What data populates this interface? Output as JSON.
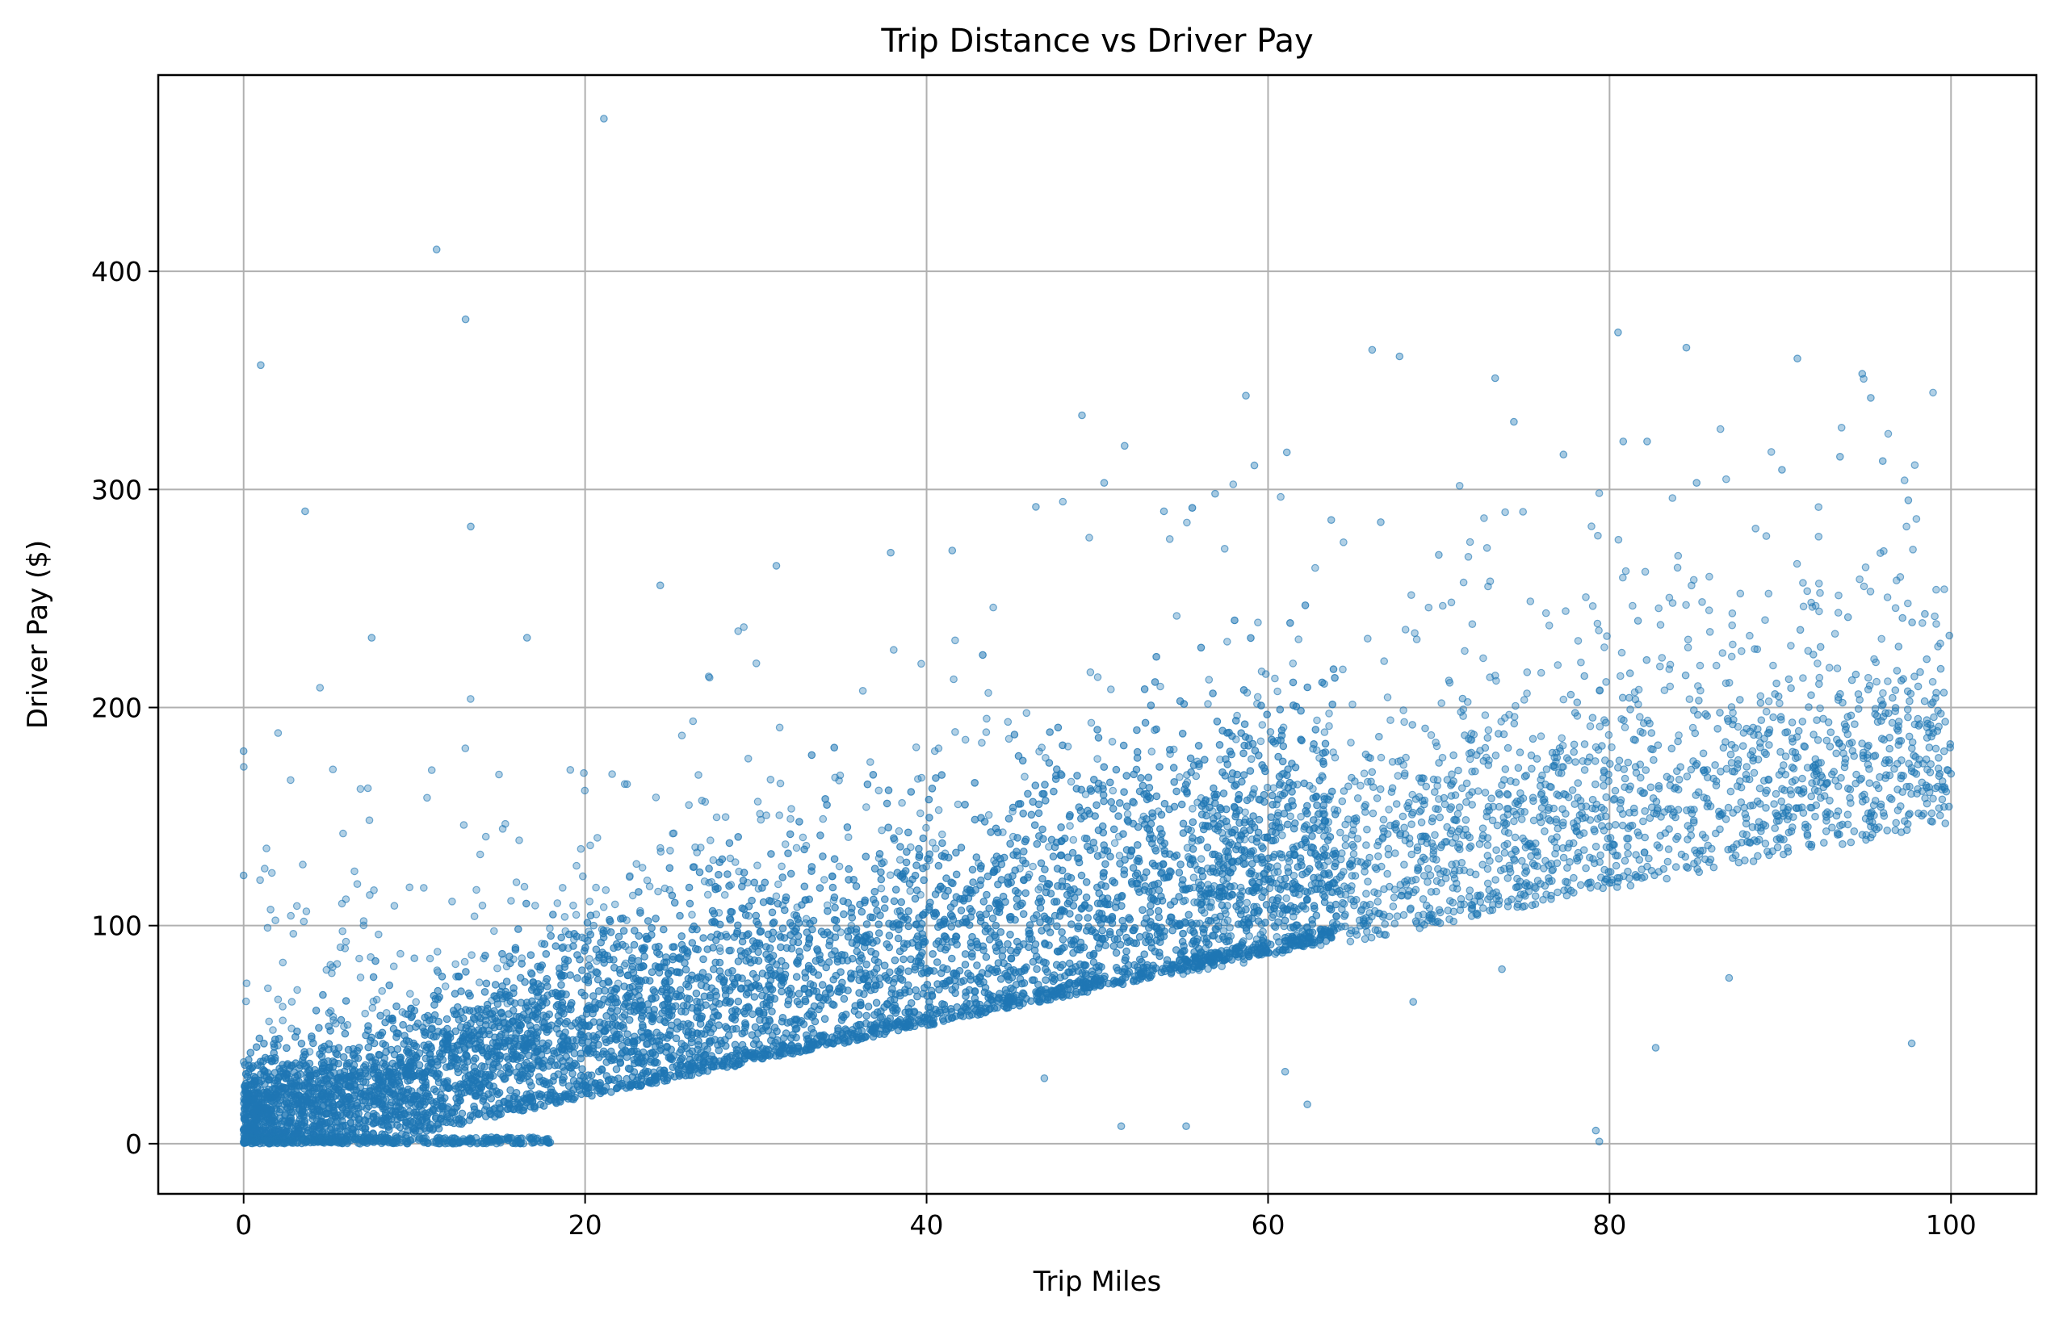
{
  "chart_data": {
    "type": "scatter",
    "title": "Trip Distance vs Driver Pay",
    "xlabel": "Trip Miles",
    "ylabel": "Driver Pay ($)",
    "xlim": [
      -5,
      105
    ],
    "ylim": [
      -23,
      490
    ],
    "xticks": [
      0,
      20,
      40,
      60,
      80,
      100
    ],
    "xtick_labels": [
      "0",
      "20",
      "40",
      "60",
      "80",
      "100"
    ],
    "yticks": [
      0,
      100,
      200,
      300,
      400
    ],
    "ytick_labels": [
      "0",
      "100",
      "200",
      "300",
      "400"
    ],
    "grid": true,
    "legend": "none",
    "colors": {
      "points": "#1f77b4",
      "grid": "#b0b0b0",
      "axes": "#000000"
    },
    "series": [
      {
        "points_note": "dense band roughly along y ≈ 10 + 1.7x, spread widens with x",
        "x": [
          0.0,
          0.0,
          1.0,
          3.6,
          7.5,
          11.3,
          13.0,
          13.3,
          16.6,
          21.1,
          24.4,
          31.2,
          37.9,
          41.5,
          46.4,
          49.1,
          50.4,
          51.6,
          53.9,
          56.9,
          58.7,
          59.2,
          61.1,
          63.7,
          66.1,
          66.6,
          67.7,
          70.0,
          73.3,
          74.4,
          77.3,
          80.5,
          80.8,
          82.2,
          84.5,
          85.1,
          90.1,
          91.0,
          93.5,
          94.8,
          95.3,
          96.0,
          97.5,
          99.9,
          87.0,
          79.2,
          79.4,
          82.7,
          97.7,
          68.5,
          73.7,
          62.3,
          61.0,
          55.2,
          51.4,
          46.9,
          20.5,
          10.0,
          5.0,
          2.0
        ],
        "y": [
          180,
          123,
          357,
          290,
          232,
          410,
          378,
          283,
          232,
          470,
          256,
          265,
          271,
          272,
          292,
          334,
          303,
          320,
          290,
          298,
          343,
          311,
          317,
          286,
          364,
          285,
          361,
          270,
          351,
          331,
          316,
          372,
          322,
          322,
          365,
          303,
          309,
          360,
          315,
          353,
          342,
          313,
          295,
          233,
          76,
          6,
          1,
          44,
          46,
          65,
          80,
          18,
          33,
          8,
          8,
          30,
          100,
          85,
          60,
          45
        ]
      }
    ]
  }
}
